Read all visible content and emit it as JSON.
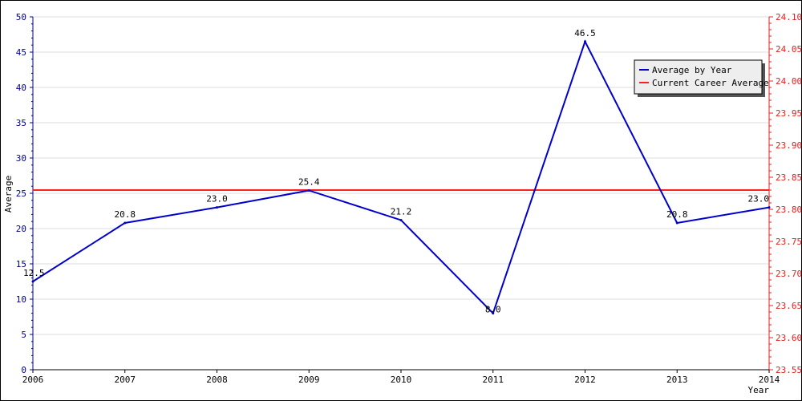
{
  "chart_data": {
    "type": "line",
    "title": "",
    "xlabel": "Year",
    "ylabel": "Average",
    "x": [
      2006,
      2007,
      2008,
      2009,
      2010,
      2011,
      2012,
      2013,
      2014
    ],
    "ylim": [
      0,
      50
    ],
    "y_ticks": [
      0,
      5,
      10,
      15,
      20,
      25,
      30,
      35,
      40,
      45,
      50
    ],
    "y2lim": [
      23.55,
      24.1
    ],
    "y2_ticks": [
      "23.55",
      "23.60",
      "23.65",
      "23.70",
      "23.75",
      "23.80",
      "23.85",
      "23.90",
      "23.95",
      "24.00",
      "24.05",
      "24.10"
    ],
    "grid": true,
    "legend_position": "top-right",
    "series": [
      {
        "name": "Average by Year",
        "color": "#0000cc",
        "values": [
          12.5,
          20.8,
          23.0,
          25.4,
          21.2,
          8.0,
          46.5,
          20.8,
          23.0
        ],
        "labels": [
          "12.5",
          "20.8",
          "23.0",
          "25.4",
          "21.2",
          "8.0",
          "46.5",
          "20.8",
          "23.0"
        ]
      },
      {
        "name": "Current Career Average",
        "color": "#ff2020",
        "constant": 23.83
      }
    ],
    "colors": {
      "left_axis": "#00008b",
      "right_axis": "#e02020",
      "grid": "#dddddd"
    }
  }
}
